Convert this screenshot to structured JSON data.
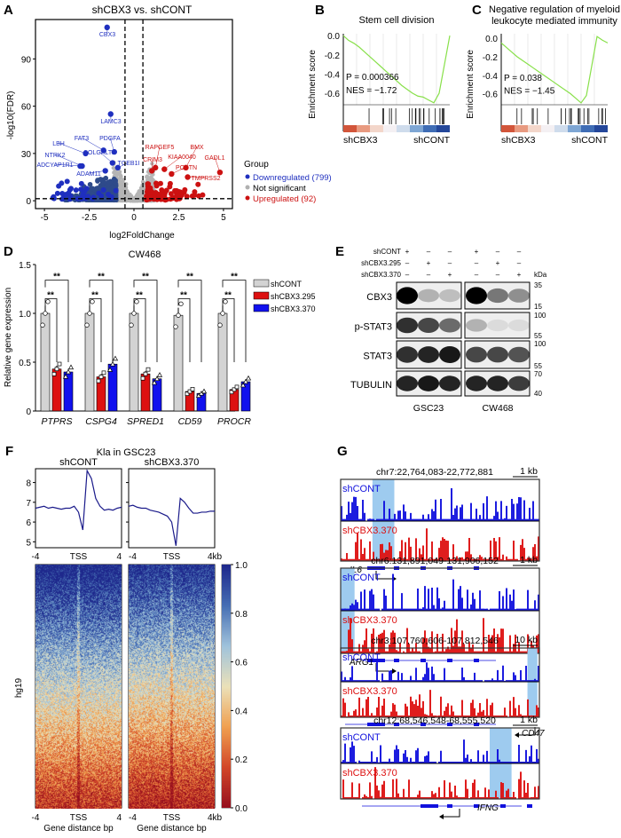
{
  "panels": {
    "A": "A",
    "B": "B",
    "C": "C",
    "D": "D",
    "E": "E",
    "F": "F",
    "G": "G"
  },
  "chart_data": [
    {
      "panel": "A",
      "type": "scatter",
      "title": "shCBX3 vs. shCONT",
      "xlabel": "log2FoldChange",
      "ylabel": "-log10(FDR)",
      "xlim": [
        -5.5,
        5.5
      ],
      "ylim": [
        -5,
        115
      ],
      "xticks": [
        "-5",
        "-2.5",
        "0",
        "2.5",
        "5"
      ],
      "yticks": [
        "0",
        "30",
        "60",
        "90"
      ],
      "thresholds": {
        "log2fc": [
          -0.5,
          0.5
        ],
        "fdr_line": 1.3
      },
      "legend_title": "Group",
      "legend": [
        {
          "name": "Downregulated (799)",
          "color": "#1f2fbf"
        },
        {
          "name": "Not significant",
          "color": "#b0b0b0"
        },
        {
          "name": "Upregulated (92)",
          "color": "#cc1111"
        }
      ],
      "labeled_points": [
        {
          "gene": "CBX3",
          "x": -1.5,
          "y": 110,
          "group": "down"
        },
        {
          "gene": "LAMC3",
          "x": -1.3,
          "y": 55,
          "group": "down"
        },
        {
          "gene": "LBH",
          "x": -2.7,
          "y": 30,
          "group": "down"
        },
        {
          "gene": "FAT3",
          "x": -1.7,
          "y": 32,
          "group": "down"
        },
        {
          "gene": "PDGFA",
          "x": -1.1,
          "y": 31,
          "group": "down"
        },
        {
          "gene": "COLGALT2",
          "x": -1.2,
          "y": 24,
          "group": "down"
        },
        {
          "gene": "NTRK2",
          "x": -2.9,
          "y": 22,
          "group": "down"
        },
        {
          "gene": "ADCYAP1R1",
          "x": -3.0,
          "y": 22,
          "group": "down"
        },
        {
          "gene": "ADAM11",
          "x": -1.6,
          "y": 19,
          "group": "down"
        },
        {
          "gene": "TGEB1I",
          "x": -0.9,
          "y": 21,
          "group": "down"
        },
        {
          "gene": "RAPGEF5",
          "x": 1.2,
          "y": 21,
          "group": "up"
        },
        {
          "gene": "CRIM3",
          "x": 1.0,
          "y": 19,
          "group": "up"
        },
        {
          "gene": "KIAA0040",
          "x": 1.7,
          "y": 20,
          "group": "up"
        },
        {
          "gene": "BMX",
          "x": 2.9,
          "y": 21,
          "group": "up"
        },
        {
          "gene": "POSTN",
          "x": 2.1,
          "y": 17,
          "group": "up"
        },
        {
          "gene": "GADL1",
          "x": 4.8,
          "y": 18,
          "group": "up"
        },
        {
          "gene": "TMPRSS2",
          "x": 3.0,
          "y": 15,
          "group": "up"
        }
      ]
    },
    {
      "panel": "B",
      "type": "line",
      "title": "Stem cell division",
      "ylabel": "Enrichment score",
      "yticks": [
        "0.0",
        "-0.2",
        "-0.4",
        "-0.6"
      ],
      "ylim": [
        -0.72,
        0.02
      ],
      "P": "P = 0.000366",
      "NES": "NES = −1.72",
      "left_label": "shCBX3",
      "right_label": "shCONT",
      "curve_color": "#88e04a",
      "es": [
        0,
        -0.05,
        -0.08,
        -0.12,
        -0.17,
        -0.22,
        -0.27,
        -0.32,
        -0.37,
        -0.42,
        -0.47,
        -0.52,
        -0.56,
        -0.6,
        -0.63,
        -0.64,
        -0.67,
        -0.7,
        -0.6,
        -0.3,
        0
      ]
    },
    {
      "panel": "C",
      "type": "line",
      "title": "Negative regulation of myeloid leukocyte mediated immunity",
      "ylabel": "Enrichment score",
      "yticks": [
        "0.0",
        "-0.2",
        "-0.4",
        "-0.6"
      ],
      "ylim": [
        -0.72,
        0.05
      ],
      "P": "P = 0.038",
      "NES": "NES = −1.45",
      "left_label": "shCBX3",
      "right_label": "shCONT",
      "curve_color": "#88e04a",
      "es": [
        -0.05,
        -0.1,
        -0.15,
        -0.2,
        -0.24,
        -0.28,
        -0.32,
        -0.36,
        -0.4,
        -0.44,
        -0.48,
        -0.52,
        -0.56,
        -0.6,
        -0.65,
        -0.7,
        -0.62,
        -0.3,
        0.02,
        -0.02,
        -0.05
      ]
    },
    {
      "panel": "D",
      "type": "bar",
      "title": "CW468",
      "ylabel": "Relative gene expression",
      "ylim": [
        0,
        1.5
      ],
      "yticks": [
        "0",
        "0.5",
        "1.0",
        "1.5"
      ],
      "categories": [
        "PTPRS",
        "CSPG4",
        "SPRED1",
        "CD59",
        "PROCR"
      ],
      "significance": "**",
      "series": [
        {
          "name": "shCONT",
          "color": "#d3d3d3",
          "values": [
            1.0,
            1.0,
            1.0,
            0.98,
            1.0
          ]
        },
        {
          "name": "shCBX3.295",
          "color": "#dd1111",
          "values": [
            0.43,
            0.35,
            0.38,
            0.2,
            0.22
          ]
        },
        {
          "name": "shCBX3.370",
          "color": "#1111ee",
          "values": [
            0.4,
            0.48,
            0.33,
            0.18,
            0.3
          ]
        }
      ]
    },
    {
      "panel": "F",
      "type": "line",
      "title": "Kla in GSC23",
      "ylabel": "hg19",
      "samples": [
        "shCONT",
        "shCBX3.370"
      ],
      "yticks": [
        "5",
        "6",
        "7",
        "8"
      ],
      "ylim": [
        4.7,
        8.7
      ],
      "xticks": [
        "-4",
        "TSS",
        "4"
      ],
      "xticks_right": [
        "-4",
        "TSS",
        "4kb"
      ],
      "xlabel": "Gene distance bp",
      "colorbar_ticks": [
        "0.0",
        "0.2",
        "0.4",
        "0.6",
        "0.8",
        "1.0"
      ],
      "profiles": [
        [
          6.7,
          6.75,
          6.8,
          6.7,
          6.75,
          6.7,
          6.65,
          6.7,
          6.7,
          6.8,
          6.5,
          5.6,
          8.6,
          8.2,
          7.2,
          6.8,
          6.6,
          6.65,
          6.6,
          6.7,
          6.75
        ],
        [
          6.8,
          6.85,
          6.75,
          6.7,
          6.7,
          6.6,
          6.55,
          6.5,
          6.4,
          6.3,
          6.0,
          4.8,
          7.2,
          7.0,
          6.7,
          6.45,
          6.45,
          6.5,
          6.5,
          6.55,
          6.55
        ]
      ]
    }
  ],
  "blot": {
    "rows": [
      "shCONT",
      "shCBX3.295",
      "shCBX3.370"
    ],
    "signs": [
      [
        "+",
        "–",
        "–",
        "+",
        "–",
        "–"
      ],
      [
        "–",
        "+",
        "–",
        "–",
        "+",
        "–"
      ],
      [
        "–",
        "–",
        "+",
        "–",
        "–",
        "+"
      ]
    ],
    "unit": "kDa",
    "proteins": [
      {
        "name": "CBX3",
        "markers": [
          "35",
          "15"
        ],
        "intensity": [
          1,
          0.25,
          0.2,
          1,
          0.5,
          0.4
        ]
      },
      {
        "name": "p-STAT3",
        "markers": [
          "100",
          "55"
        ],
        "intensity": [
          0.8,
          0.7,
          0.55,
          0.25,
          0.08,
          0.08
        ]
      },
      {
        "name": "STAT3",
        "markers": [
          "100",
          "55"
        ],
        "intensity": [
          0.8,
          0.85,
          0.9,
          0.7,
          0.7,
          0.65
        ]
      },
      {
        "name": "TUBULIN",
        "markers": [
          "70",
          "40"
        ],
        "intensity": [
          0.85,
          0.9,
          0.85,
          0.85,
          0.85,
          0.75
        ]
      }
    ],
    "cell_lines": [
      "GSC23",
      "CW468"
    ]
  },
  "tracks": [
    {
      "region": "chr7:22,764,083-22,772,881",
      "scale": "1 kb",
      "gene": "IL6",
      "samples": [
        "shCONT",
        "shCBX3.370"
      ]
    },
    {
      "region": "chr6:131,891,049-131,906,152",
      "scale": "1 kb",
      "gene": "ARG1",
      "samples": [
        "shCONT",
        "shCBX3.370"
      ]
    },
    {
      "region": "chr3:107,760,606-107,812,546",
      "scale": "10 kb",
      "gene": "CD47",
      "samples": [
        "shCONT",
        "shCBX3.370"
      ]
    },
    {
      "region": "chr12:68,546,548-68,555,520",
      "scale": "1 kb",
      "gene": "IFNG",
      "samples": [
        "shCONT",
        "shCBX3.370"
      ]
    }
  ],
  "colors": {
    "blue": "#1111dd",
    "red": "#dd1111",
    "highlight": "#9ecbef"
  }
}
